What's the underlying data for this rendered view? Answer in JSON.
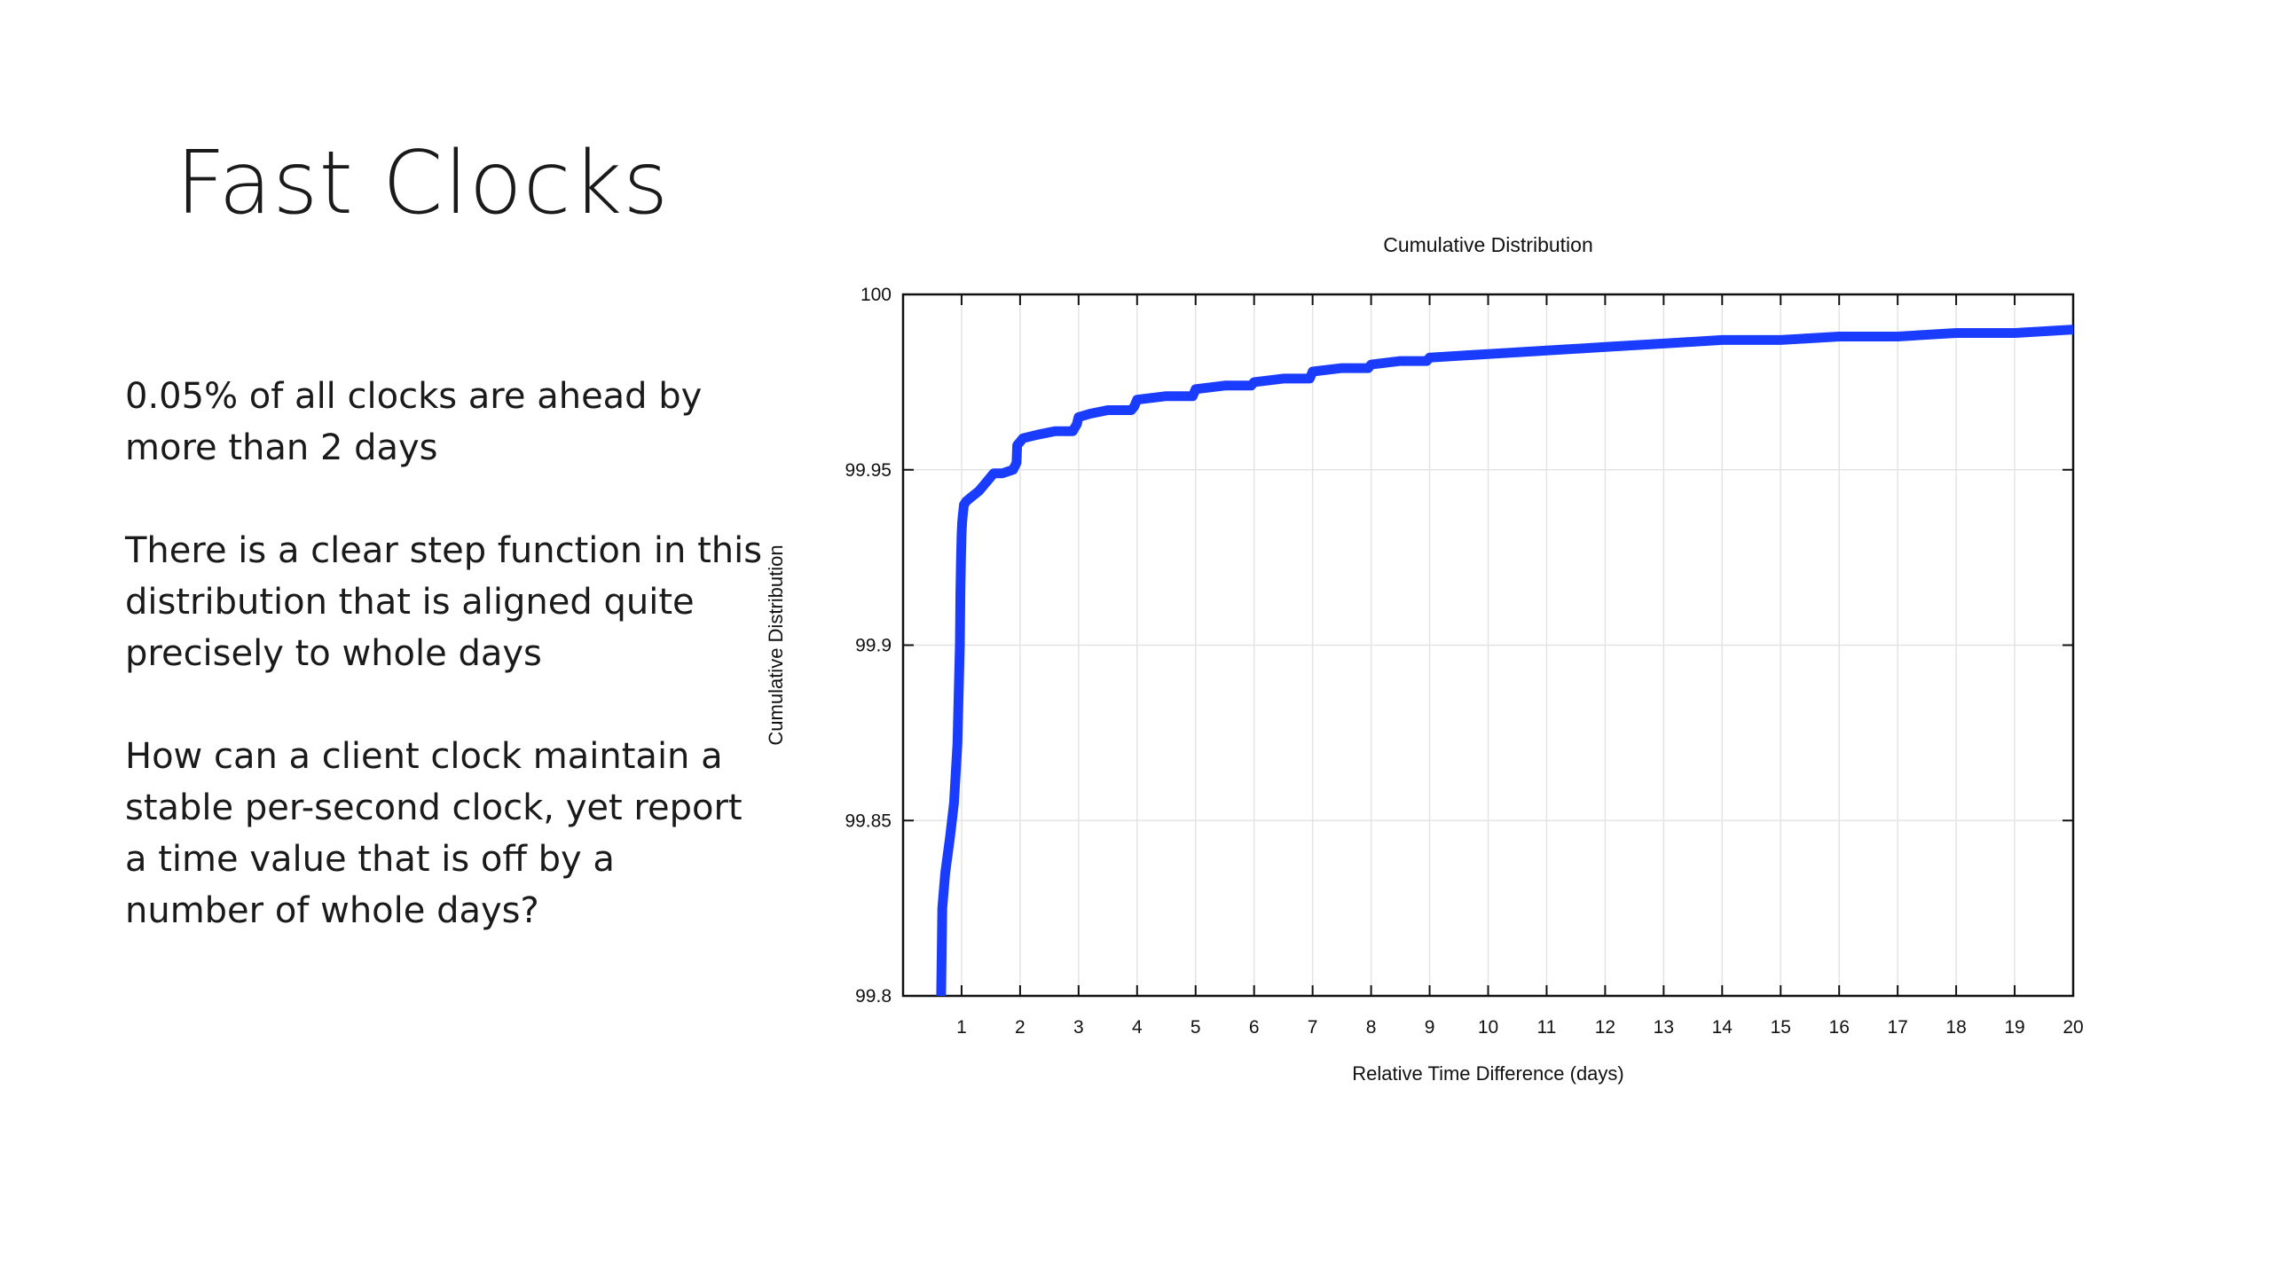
{
  "slide": {
    "title": "Fast Clocks",
    "paragraphs": [
      "0.05% of all clocks are ahead by more than 2 days",
      "There is a clear step function in this distribution that is aligned quite precisely to whole days",
      "How can a client clock maintain a stable per-second clock, yet report a time value that is off by a number of whole days?"
    ]
  },
  "chart_data": {
    "type": "line",
    "title": "Cumulative Distribution",
    "xlabel": "Relative Time Difference (days)",
    "ylabel": "Cumulative Distribution",
    "xlim": [
      0,
      20
    ],
    "ylim": [
      99.8,
      100
    ],
    "xticks": [
      "1",
      "2",
      "3",
      "4",
      "5",
      "6",
      "7",
      "8",
      "9",
      "10",
      "11",
      "12",
      "13",
      "14",
      "15",
      "16",
      "17",
      "18",
      "19",
      "20"
    ],
    "yticks": [
      "99.8",
      "99.85",
      "99.9",
      "99.95",
      "100"
    ],
    "grid": true,
    "line_color": "#1a3cff",
    "series": [
      {
        "x": [
          0.65,
          0.67,
          0.72,
          0.8,
          0.87,
          0.93,
          0.97,
          0.98,
          0.99,
          1.0,
          1.01,
          1.02,
          1.04,
          1.08,
          1.15,
          1.3,
          1.45,
          1.55,
          1.7,
          1.88,
          1.94,
          1.95,
          2.05,
          2.3,
          2.6,
          2.9,
          2.97,
          3.0,
          3.2,
          3.5,
          3.9,
          3.95,
          4.0,
          4.5,
          4.95,
          5.0,
          5.5,
          5.95,
          6.0,
          6.5,
          6.95,
          7.0,
          7.5,
          7.95,
          8.0,
          8.5,
          8.95,
          9.0,
          10,
          11,
          12,
          13,
          14,
          15,
          16,
          17,
          18,
          19,
          20
        ],
        "y": [
          99.8,
          99.825,
          99.835,
          99.845,
          99.855,
          99.872,
          99.9,
          99.915,
          99.925,
          99.932,
          99.935,
          99.937,
          99.94,
          99.941,
          99.942,
          99.944,
          99.947,
          99.949,
          99.949,
          99.95,
          99.952,
          99.957,
          99.959,
          99.96,
          99.961,
          99.961,
          99.963,
          99.965,
          99.966,
          99.967,
          99.967,
          99.968,
          99.97,
          99.971,
          99.971,
          99.973,
          99.974,
          99.974,
          99.975,
          99.976,
          99.976,
          99.978,
          99.979,
          99.979,
          99.98,
          99.981,
          99.981,
          99.982,
          99.983,
          99.984,
          99.985,
          99.986,
          99.987,
          99.987,
          99.988,
          99.988,
          99.989,
          99.989,
          99.99
        ]
      }
    ]
  }
}
